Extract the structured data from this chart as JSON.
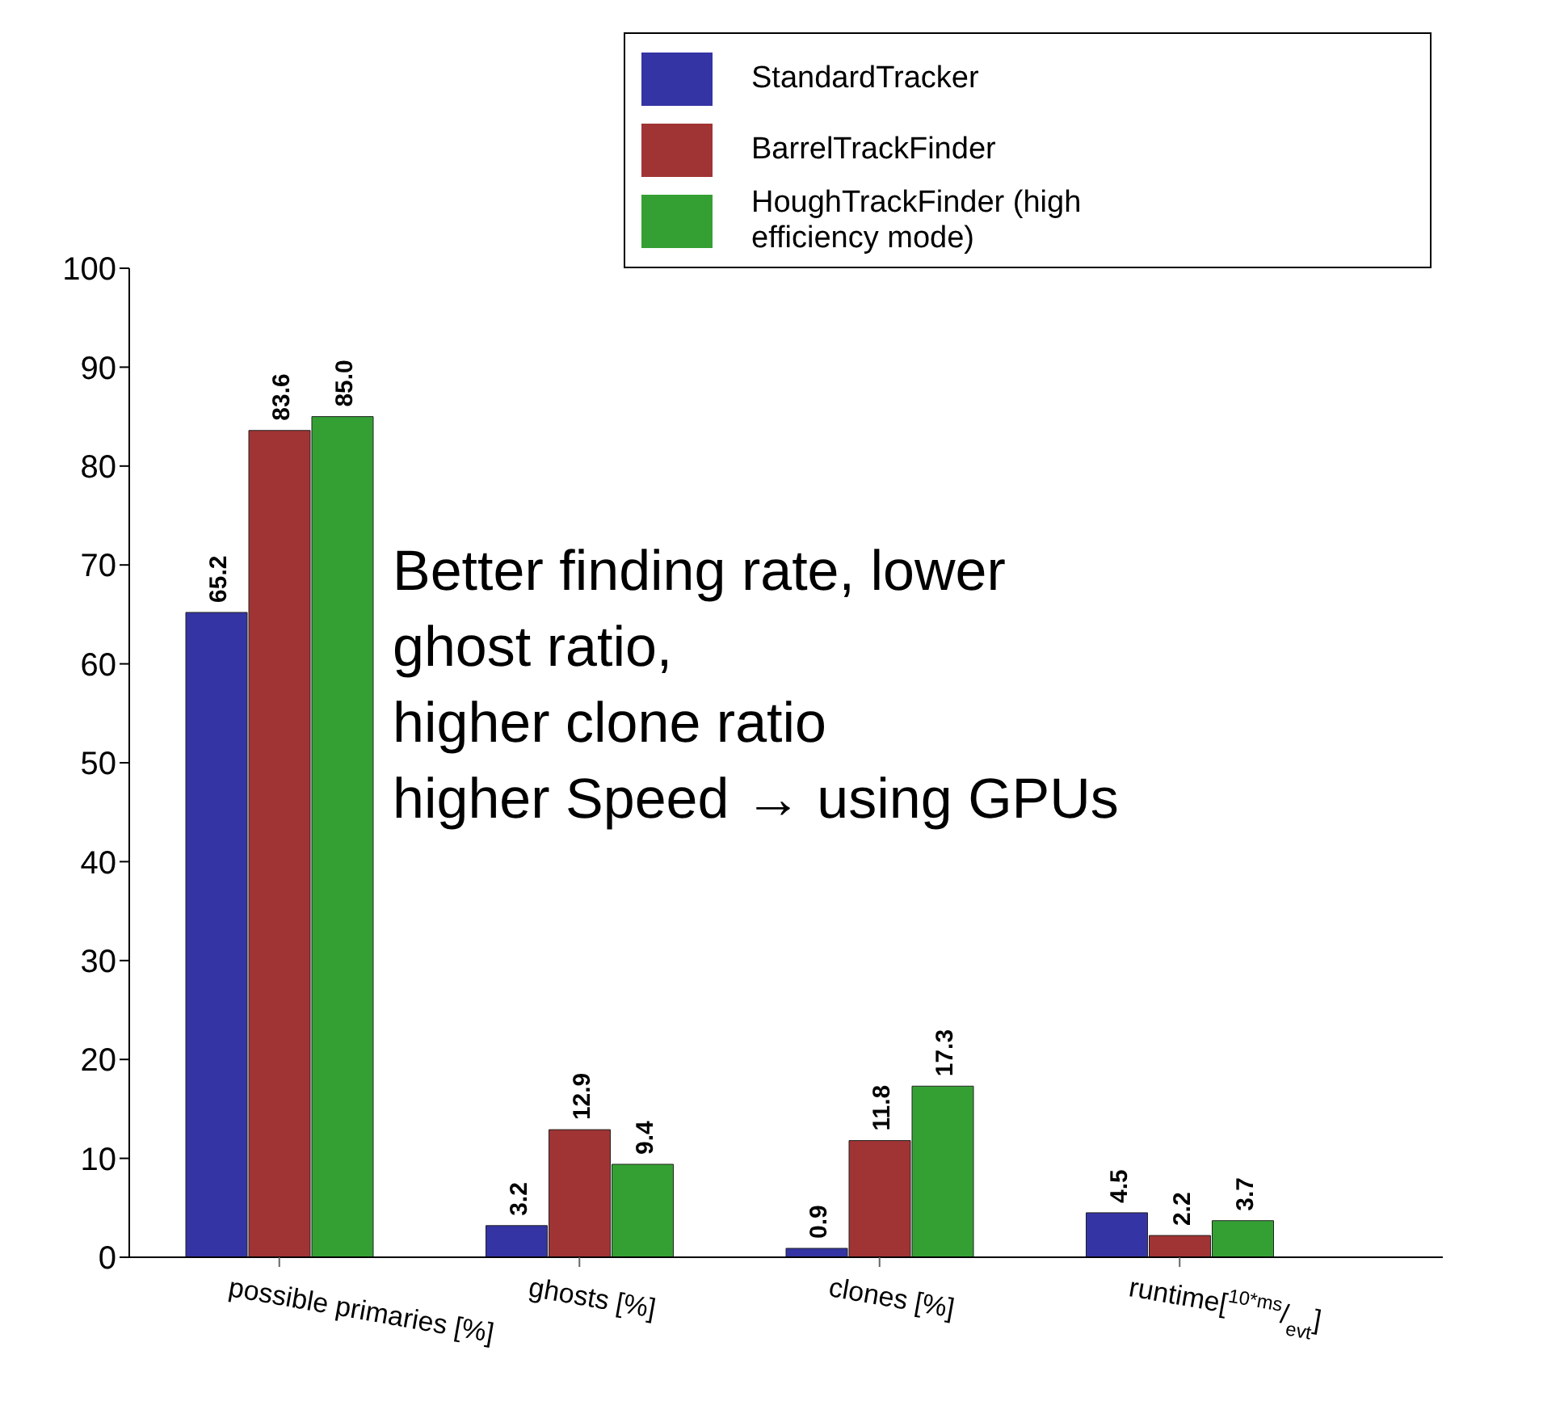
{
  "chart_data": {
    "type": "bar",
    "categories": [
      "possible primaries [%]",
      "ghosts [%]",
      "clones [%]",
      "runtime[$^{10*ms}$/$_{evt}$]"
    ],
    "series": [
      {
        "name": "StandardTracker",
        "color": "#3434a4",
        "values": [
          65.2,
          3.2,
          0.9,
          4.5
        ],
        "value_labels": [
          "65.2",
          "3.2",
          "0.9",
          "4.5"
        ]
      },
      {
        "name": "BarrelTrackFinder",
        "color": "#a03434",
        "values": [
          83.6,
          12.9,
          11.8,
          2.2
        ],
        "value_labels": [
          "83.6",
          "12.9",
          "11.8",
          "2.2"
        ]
      },
      {
        "name": "HoughTrackFinder (high efficiency mode)",
        "color": "#34a034",
        "values": [
          85.0,
          9.4,
          17.3,
          3.7
        ],
        "value_labels": [
          "85.0",
          "9.4",
          "17.3",
          "3.7"
        ]
      }
    ],
    "ylim": [
      0,
      100
    ],
    "yticks": [
      0,
      10,
      20,
      30,
      40,
      50,
      60,
      70,
      80,
      90,
      100
    ],
    "legend": "top right",
    "grid": false,
    "annotations": [
      "Better finding rate, lower\nghost ratio,\nhigher clone ratio\nhigher Speed → using GPUs"
    ]
  }
}
